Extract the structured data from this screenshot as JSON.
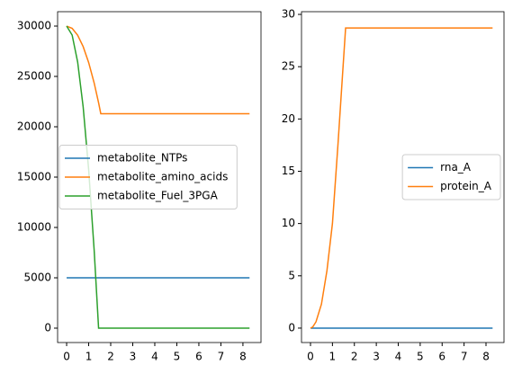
{
  "chart_data": [
    {
      "type": "line",
      "x": [
        0,
        0.25,
        0.5,
        0.75,
        1.0,
        1.25,
        1.45,
        1.55,
        2,
        3,
        4,
        5,
        6,
        7,
        8,
        8.3
      ],
      "series": [
        {
          "name": "metabolite_NTPs",
          "color": "#1f77b4",
          "values": [
            5000,
            5000,
            5000,
            5000,
            5000,
            5000,
            5000,
            5000,
            5000,
            5000,
            5000,
            5000,
            5000,
            5000,
            5000,
            5000
          ]
        },
        {
          "name": "metabolite_amino_acids",
          "color": "#ff7f0e",
          "values": [
            30000,
            29774,
            29095,
            27963,
            26379,
            24342,
            22386,
            21300,
            21300,
            21300,
            21300,
            21300,
            21300,
            21300,
            21300,
            21300
          ]
        },
        {
          "name": "metabolite_Fuel_3PGA",
          "color": "#2ca02c",
          "values": [
            30000,
            29108,
            26433,
            21974,
            15731,
            7705,
            0,
            0,
            0,
            0,
            0,
            0,
            0,
            0,
            0,
            0
          ]
        }
      ],
      "xlim": [
        -0.41,
        8.82
      ],
      "ylim": [
        -1430,
        31430
      ],
      "xticks": [
        0,
        1,
        2,
        3,
        4,
        5,
        6,
        7,
        8
      ],
      "yticks": [
        0,
        5000,
        10000,
        15000,
        20000,
        25000,
        30000
      ],
      "legend": "center left"
    },
    {
      "type": "line",
      "x": [
        0,
        0.1,
        0.25,
        0.5,
        0.75,
        1.0,
        1.25,
        1.6,
        2,
        3,
        4,
        5,
        6,
        7,
        8,
        8.3
      ],
      "series": [
        {
          "name": "rna_A",
          "color": "#1f77b4",
          "values": [
            0,
            0,
            0,
            0,
            0,
            0,
            0,
            0,
            0,
            0,
            0,
            0,
            0,
            0,
            0,
            0
          ]
        },
        {
          "name": "protein_A",
          "color": "#ff7f0e",
          "values": [
            0,
            0.1,
            0.6,
            2.3,
            5.5,
            10,
            17.5,
            28.7,
            28.7,
            28.7,
            28.7,
            28.7,
            28.7,
            28.7,
            28.7,
            28.7
          ]
        }
      ],
      "xlim": [
        -0.41,
        8.82
      ],
      "ylim": [
        -1.38,
        30.26
      ],
      "xticks": [
        0,
        1,
        2,
        3,
        4,
        5,
        6,
        7,
        8
      ],
      "yticks": [
        0,
        5,
        10,
        15,
        20,
        25,
        30
      ],
      "legend": "center right"
    }
  ]
}
